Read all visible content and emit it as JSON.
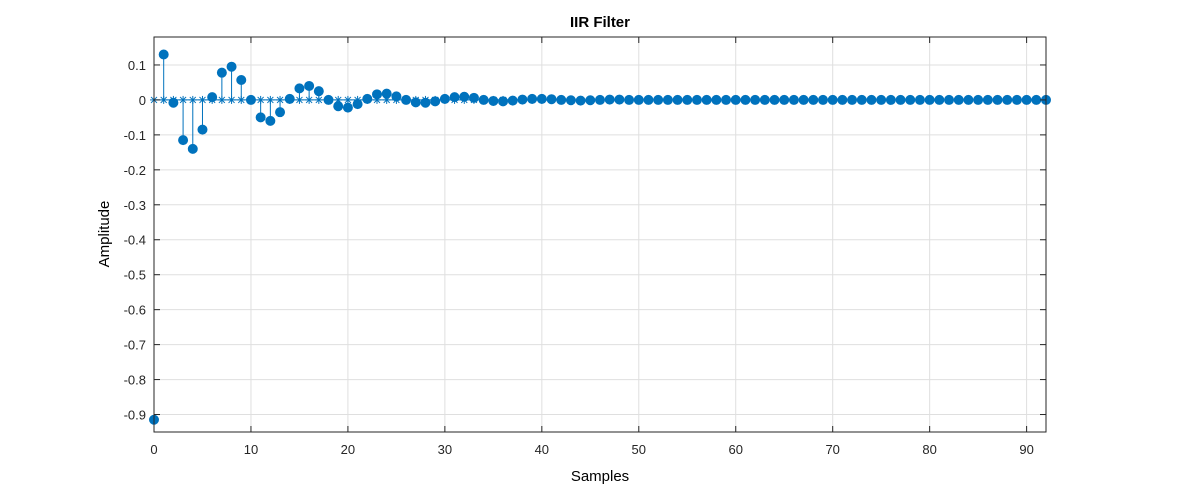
{
  "chart_data": {
    "type": "stem",
    "title": "IIR Filter",
    "xlabel": "Samples",
    "ylabel": "Amplitude",
    "xlim": [
      0,
      92
    ],
    "ylim": [
      -0.95,
      0.18
    ],
    "grid": true,
    "x_ticks": [
      0,
      10,
      20,
      30,
      40,
      50,
      60,
      70,
      80,
      90
    ],
    "x_tick_labels": [
      "0",
      "10",
      "20",
      "30",
      "40",
      "50",
      "60",
      "70",
      "80",
      "90"
    ],
    "y_ticks": [
      0.1,
      0,
      -0.1,
      -0.2,
      -0.3,
      -0.4,
      -0.5,
      -0.6,
      -0.7,
      -0.8,
      -0.9
    ],
    "y_tick_labels": [
      "0.1",
      "0",
      "-0.1",
      "-0.2",
      "-0.3",
      "-0.4",
      "-0.5",
      "-0.6",
      "-0.7",
      "-0.8",
      "-0.9"
    ],
    "series": [
      {
        "marker": "filled-circle",
        "color": "#0072BD",
        "x": [
          0,
          1,
          2,
          3,
          4,
          5,
          6,
          7,
          8,
          9,
          10,
          11,
          12,
          13,
          14,
          15,
          16,
          17,
          18,
          19,
          20,
          21,
          22,
          23,
          24,
          25,
          26,
          27,
          28,
          29,
          30,
          31,
          32,
          33,
          34,
          35,
          36,
          37,
          38,
          39,
          40,
          41,
          42,
          43,
          44,
          45,
          46,
          47,
          48,
          49,
          50,
          51,
          52,
          53,
          54,
          55,
          56,
          57,
          58,
          59,
          60,
          61,
          62,
          63,
          64,
          65,
          66,
          67,
          68,
          69,
          70,
          71,
          72,
          73,
          74,
          75,
          76,
          77,
          78,
          79,
          80,
          81,
          82,
          83,
          84,
          85,
          86,
          87,
          88,
          89,
          90,
          91,
          92
        ],
        "y": [
          -0.915,
          0.13,
          -0.008,
          -0.115,
          -0.14,
          -0.085,
          0.008,
          0.078,
          0.095,
          0.057,
          0.0,
          -0.05,
          -0.06,
          -0.035,
          0.003,
          0.033,
          0.04,
          0.025,
          0.0,
          -0.018,
          -0.022,
          -0.012,
          0.003,
          0.016,
          0.018,
          0.01,
          0.0,
          -0.007,
          -0.008,
          -0.004,
          0.003,
          0.008,
          0.009,
          0.006,
          0.0,
          -0.003,
          -0.004,
          -0.002,
          0.001,
          0.003,
          0.003,
          0.002,
          0.0,
          -0.001,
          -0.002,
          -0.001,
          0.0,
          0.001,
          0.001,
          0.0,
          0.0,
          0.0,
          0.0,
          0.0,
          0.0,
          0.0,
          0.0,
          0.0,
          0.0,
          0.0,
          0.0,
          0.0,
          0.0,
          0.0,
          0.0,
          0.0,
          0.0,
          0.0,
          0.0,
          0.0,
          0.0,
          0.0,
          0.0,
          0.0,
          0.0,
          0.0,
          0.0,
          0.0,
          0.0,
          0.0,
          0.0,
          0.0,
          0.0,
          0.0,
          0.0,
          0.0,
          0.0,
          0.0,
          0.0,
          0.0,
          0.0,
          0.0,
          0.0
        ]
      }
    ],
    "baseline": {
      "value": 0,
      "marker": "asterisk",
      "color": "#0072BD"
    }
  }
}
